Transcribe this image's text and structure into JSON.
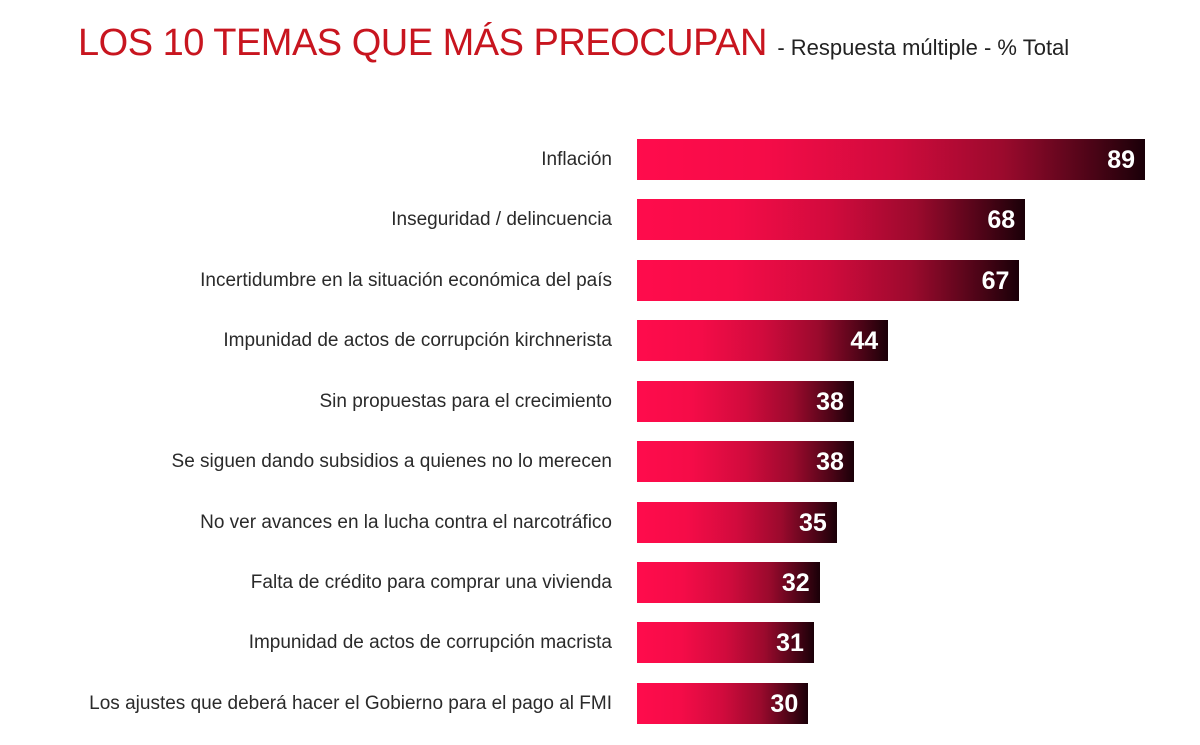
{
  "header": {
    "title": "LOS 10 TEMAS QUE MÁS PREOCUPAN",
    "subtitle": "- Respuesta múltiple - % Total"
  },
  "colors": {
    "title": "#c8151f",
    "bar_start": "#ff0c4c",
    "bar_end": "#1a0008",
    "label_text": "#2a2a2a",
    "value_text": "#ffffff"
  },
  "chart_data": {
    "type": "bar",
    "orientation": "horizontal",
    "title": "LOS 10 TEMAS QUE MÁS PREOCUPAN",
    "subtitle": "- Respuesta múltiple - % Total",
    "xlabel": "",
    "ylabel": "",
    "unit": "%",
    "grid": false,
    "legend": null,
    "xlim": [
      0,
      89
    ],
    "categories": [
      "Inflación",
      "Inseguridad / delincuencia",
      "Incertidumbre en la situación económica del país",
      "Impunidad de actos de corrupción kirchnerista",
      "Sin propuestas para el crecimiento",
      "Se siguen dando subsidios a quienes no lo merecen",
      "No ver avances en la lucha contra el narcotráfico",
      "Falta de crédito para comprar una vivienda",
      "Impunidad de actos de corrupción macrista",
      "Los ajustes que deberá hacer el Gobierno para el pago al FMI"
    ],
    "values": [
      89,
      68,
      67,
      44,
      38,
      38,
      35,
      32,
      31,
      30
    ],
    "data_labels": [
      "89",
      "68",
      "67",
      "44",
      "38",
      "38",
      "35",
      "32",
      "31",
      "30"
    ]
  }
}
